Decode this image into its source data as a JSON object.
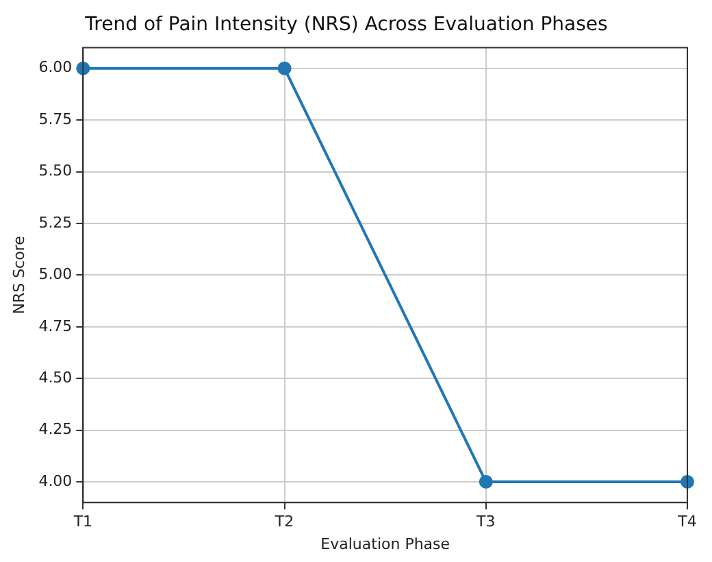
{
  "chart_data": {
    "type": "line",
    "title": "Trend of Pain Intensity (NRS) Across Evaluation Phases",
    "xlabel": "Evaluation Phase",
    "ylabel": "NRS Score",
    "categories": [
      "T1",
      "T2",
      "T3",
      "T4"
    ],
    "series": [
      {
        "color": "#1f77b4",
        "values": [
          6,
          6,
          4,
          4
        ]
      }
    ],
    "ylim": [
      3.9,
      6.1
    ],
    "yticks": [
      {
        "value": 4,
        "label": "4.00"
      },
      {
        "value": 4.25,
        "label": "4.25"
      },
      {
        "value": 4.5,
        "label": "4.50"
      },
      {
        "value": 4.75,
        "label": "4.75"
      },
      {
        "value": 5,
        "label": "5.00"
      },
      {
        "value": 5.25,
        "label": "5.25"
      },
      {
        "value": 5.5,
        "label": "5.50"
      },
      {
        "value": 5.75,
        "label": "5.75"
      },
      {
        "value": 6,
        "label": "6.00"
      }
    ],
    "grid": true,
    "marker": "circle",
    "line_style": "solid"
  }
}
